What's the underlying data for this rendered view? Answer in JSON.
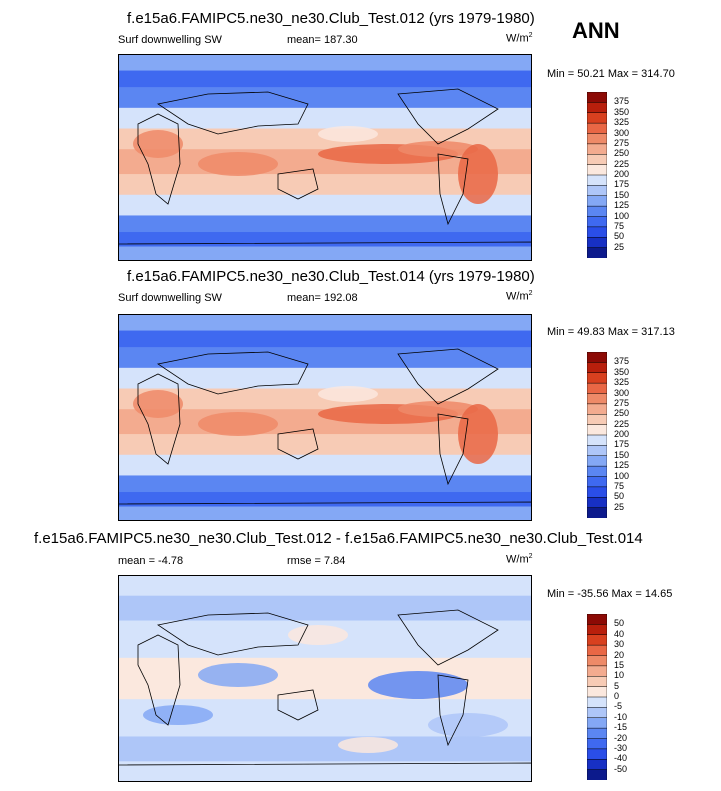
{
  "season": "ANN",
  "colors": {
    "abs_scale": [
      "#0c1a8c",
      "#1730c4",
      "#2a4ee8",
      "#3f69f0",
      "#5b86f2",
      "#84a8f5",
      "#aec6f8",
      "#d5e3fb",
      "#fbe8de",
      "#f7cbb5",
      "#f3ab8f",
      "#ee8a68",
      "#e96745",
      "#d8401f",
      "#b81f0c",
      "#8c0a05"
    ],
    "diff_scale": [
      "#0c1a8c",
      "#1730c4",
      "#2a4ee8",
      "#3f69f0",
      "#5b86f2",
      "#84a8f5",
      "#aec6f8",
      "#d5e3fb",
      "#fbe8de",
      "#f7cbb5",
      "#f3ab8f",
      "#ee8a68",
      "#e96745",
      "#d8401f",
      "#b81f0c",
      "#8c0a05"
    ],
    "land_outline": "#000000"
  },
  "panels": [
    {
      "title": "f.e15a6.FAMIPC5.ne30_ne30.Club_Test.012 (yrs 1979-1980)",
      "left_label": "Surf downwelling SW",
      "center_label": "mean= 187.30",
      "units_base": "W/m",
      "units_sup": "2",
      "minmax": "Min =  50.21 Max = 314.70",
      "colorbar_labels": [
        "375",
        "350",
        "325",
        "300",
        "275",
        "250",
        "225",
        "200",
        "175",
        "150",
        "125",
        "100",
        "75",
        "50",
        "25"
      ]
    },
    {
      "title": "f.e15a6.FAMIPC5.ne30_ne30.Club_Test.014 (yrs 1979-1980)",
      "left_label": "Surf downwelling SW",
      "center_label": "mean= 192.08",
      "units_base": "W/m",
      "units_sup": "2",
      "minmax": "Min =  49.83 Max = 317.13",
      "colorbar_labels": [
        "375",
        "350",
        "325",
        "300",
        "275",
        "250",
        "225",
        "200",
        "175",
        "150",
        "125",
        "100",
        "75",
        "50",
        "25"
      ]
    },
    {
      "title": "f.e15a6.FAMIPC5.ne30_ne30.Club_Test.012 - f.e15a6.FAMIPC5.ne30_ne30.Club_Test.014",
      "left_label": "mean =  -4.78",
      "center_label": "rmse =   7.84",
      "units_base": "W/m",
      "units_sup": "2",
      "minmax": "Min = -35.56 Max =  14.65",
      "colorbar_labels": [
        "50",
        "40",
        "30",
        "20",
        "15",
        "10",
        "5",
        "0",
        "-5",
        "-10",
        "-15",
        "-20",
        "-30",
        "-40",
        "-50"
      ]
    }
  ],
  "chart_data": [
    {
      "type": "heatmap",
      "title": "f.e15a6.FAMIPC5.ne30_ne30.Club_Test.012 (yrs 1979-1980)",
      "variable": "Surf downwelling SW",
      "units": "W/m2",
      "mean": 187.3,
      "min": 50.21,
      "max": 314.7,
      "colorbar_levels": [
        25,
        50,
        75,
        100,
        125,
        150,
        175,
        200,
        225,
        250,
        275,
        300,
        325,
        350,
        375
      ]
    },
    {
      "type": "heatmap",
      "title": "f.e15a6.FAMIPC5.ne30_ne30.Club_Test.014 (yrs 1979-1980)",
      "variable": "Surf downwelling SW",
      "units": "W/m2",
      "mean": 192.08,
      "min": 49.83,
      "max": 317.13,
      "colorbar_levels": [
        25,
        50,
        75,
        100,
        125,
        150,
        175,
        200,
        225,
        250,
        275,
        300,
        325,
        350,
        375
      ]
    },
    {
      "type": "heatmap",
      "title": "f.e15a6.FAMIPC5.ne30_ne30.Club_Test.012 - f.e15a6.FAMIPC5.ne30_ne30.Club_Test.014",
      "units": "W/m2",
      "mean": -4.78,
      "rmse": 7.84,
      "min": -35.56,
      "max": 14.65,
      "colorbar_levels": [
        -50,
        -40,
        -30,
        -20,
        -15,
        -10,
        -5,
        0,
        5,
        10,
        15,
        20,
        30,
        40,
        50
      ]
    }
  ]
}
